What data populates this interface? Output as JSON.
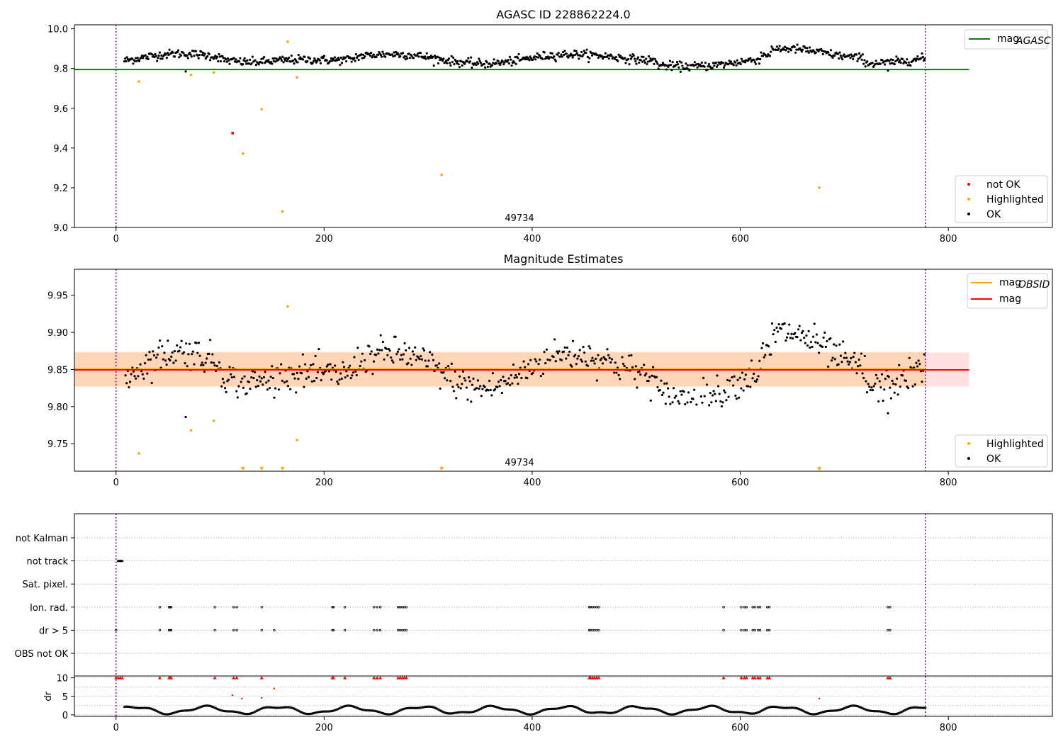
{
  "chart_data": [
    {
      "type": "scatter",
      "title": "AGASC ID 228862224.0",
      "annotation": "49734",
      "xlim": [
        -40,
        900
      ],
      "ylim": [
        9.0,
        10.02
      ],
      "xticks": [
        0,
        200,
        400,
        600,
        800
      ],
      "xtick_labels": [
        "0",
        "200",
        "400",
        "600",
        "800"
      ],
      "yticks": [
        9.0,
        9.2,
        9.4,
        9.6,
        9.8,
        10.0
      ],
      "ytick_labels": [
        "9.0",
        "9.2",
        "9.4",
        "9.6",
        "9.8",
        "10.0"
      ],
      "vlines": [
        0,
        778
      ],
      "hline": {
        "name": "mag_AGASC",
        "label_main": "mag",
        "label_sub": "AGASC",
        "y": 9.795,
        "x_range": [
          -40,
          820
        ],
        "color": "#008000"
      },
      "legend_lines": [
        {
          "label_main": "mag",
          "label_sub": "AGASC",
          "color": "#008000"
        }
      ],
      "legend_markers": [
        {
          "label": "not OK",
          "color": "#ff0000"
        },
        {
          "label": "Highlighted",
          "color": "#ffa500"
        },
        {
          "label": "OK",
          "color": "#000000"
        }
      ],
      "series": [
        {
          "name": "not OK",
          "color": "#ff0000",
          "points": [
            [
              112,
              9.475
            ]
          ]
        },
        {
          "name": "Highlighted",
          "color": "#ffa500",
          "points": [
            [
              22,
              9.735
            ],
            [
              72,
              9.768
            ],
            [
              94,
              9.78
            ],
            [
              122,
              9.372
            ],
            [
              140,
              9.595
            ],
            [
              160,
              9.08
            ],
            [
              165,
              9.935
            ],
            [
              174,
              9.755
            ],
            [
              313,
              9.265
            ],
            [
              676,
              9.2
            ]
          ]
        },
        {
          "name": "OK",
          "color": "#000000",
          "model": {
            "x_start": 8,
            "x_end": 778,
            "x_step": 0.85,
            "baseline": 9.85,
            "noise": 0.018,
            "dips": [
              [
                67,
                9.785
              ],
              [
                742,
                9.79
              ]
            ]
          }
        }
      ]
    },
    {
      "type": "scatter",
      "title": "Magnitude Estimates",
      "annotation": "49734",
      "xlim": [
        -40,
        900
      ],
      "ylim": [
        9.713,
        9.985
      ],
      "xticks": [
        0,
        200,
        400,
        600,
        800
      ],
      "xtick_labels": [
        "0",
        "200",
        "400",
        "600",
        "800"
      ],
      "yticks": [
        9.75,
        9.8,
        9.85,
        9.9,
        9.95
      ],
      "ytick_labels": [
        "9.75",
        "9.80",
        "9.85",
        "9.90",
        "9.95"
      ],
      "vlines": [
        0,
        778
      ],
      "hlines": [
        {
          "name": "mag_OBSID",
          "y": 9.8505,
          "x_range": [
            -40,
            778
          ],
          "color": "#ffa500",
          "band": [
            9.827,
            9.874
          ]
        },
        {
          "name": "mag",
          "y": 9.8495,
          "x_range": [
            -40,
            820
          ],
          "color": "#ff0000",
          "band": [
            9.827,
            9.873
          ]
        }
      ],
      "legend_lines": [
        {
          "label_main": "mag",
          "label_sub": "OBSID",
          "color": "#ffa500"
        },
        {
          "label_main": "mag",
          "label_sub": "",
          "color": "#ff0000"
        }
      ],
      "legend_markers": [
        {
          "label": "Highlighted",
          "color": "#ffa500"
        },
        {
          "label": "OK",
          "color": "#000000"
        }
      ],
      "series": [
        {
          "name": "Highlighted",
          "color": "#ffa500",
          "points": [
            [
              22,
              9.737
            ],
            [
              72,
              9.768
            ],
            [
              94,
              9.781
            ],
            [
              165,
              9.935
            ],
            [
              174,
              9.755
            ]
          ]
        },
        {
          "name": "Highlighted (below range)",
          "color": "#ffa500",
          "x": [
            122,
            140,
            160,
            313,
            676
          ]
        },
        {
          "name": "OK",
          "color": "#000000",
          "model": {
            "x_start": 8,
            "x_end": 778,
            "x_step": 1.1,
            "baseline": 9.85,
            "noise": 0.018,
            "dips": [
              [
                67,
                9.786
              ],
              [
                742,
                9.791
              ]
            ]
          }
        }
      ]
    },
    {
      "type": "scatter",
      "title": "",
      "xlim": [
        -40,
        900
      ],
      "xticks": [
        0,
        200,
        400,
        600,
        800
      ],
      "xtick_labels": [
        "0",
        "200",
        "400",
        "600",
        "800"
      ],
      "vlines": [
        0,
        778
      ],
      "categories": [
        "not Kalman",
        "not track",
        "Sat. pixel.",
        "Ion. rad.",
        "dr > 5",
        "OBS not OK"
      ],
      "flag_series": [
        {
          "category": "not track",
          "x": [
            2,
            3,
            4,
            5,
            6
          ]
        },
        {
          "category": "Ion. rad.",
          "x": [
            42,
            51,
            52,
            53,
            95,
            113,
            116,
            140,
            208,
            209,
            220,
            248,
            251,
            254,
            271,
            273,
            275,
            277,
            279,
            455,
            456,
            458,
            460,
            462,
            464,
            584,
            601,
            604,
            606,
            612,
            614,
            617,
            619,
            626,
            628,
            742,
            744
          ]
        },
        {
          "category": "dr > 5",
          "x": [
            0,
            42,
            51,
            52,
            53,
            95,
            113,
            116,
            140,
            152,
            208,
            209,
            220,
            248,
            251,
            254,
            271,
            273,
            275,
            277,
            279,
            455,
            456,
            458,
            460,
            462,
            464,
            584,
            601,
            604,
            606,
            612,
            614,
            617,
            619,
            626,
            628,
            742,
            744
          ]
        }
      ],
      "dr_panel": {
        "ylabel": "dr",
        "ylim": [
          -0.4,
          10.5
        ],
        "yticks": [
          0,
          5,
          10
        ],
        "ytick_labels": [
          "0",
          "5",
          "10"
        ],
        "capped": {
          "color": "#ff0000",
          "y": 10,
          "x": [
            0,
            2,
            4,
            6,
            42,
            51,
            52,
            53,
            95,
            113,
            116,
            140,
            208,
            209,
            220,
            248,
            251,
            254,
            271,
            273,
            275,
            277,
            279,
            455,
            456,
            458,
            460,
            462,
            464,
            584,
            601,
            604,
            606,
            612,
            614,
            617,
            619,
            626,
            628,
            742,
            744
          ]
        },
        "outliers": {
          "color": "#ff0000",
          "points": [
            [
              112,
              5.3
            ],
            [
              121,
              4.4
            ],
            [
              152,
              7.1
            ],
            [
              140,
              4.6
            ],
            [
              676,
              4.4
            ]
          ]
        },
        "ok": {
          "color": "#000000",
          "model": {
            "x_start": 8,
            "x_end": 778,
            "x_step": 1.0
          }
        }
      }
    }
  ]
}
